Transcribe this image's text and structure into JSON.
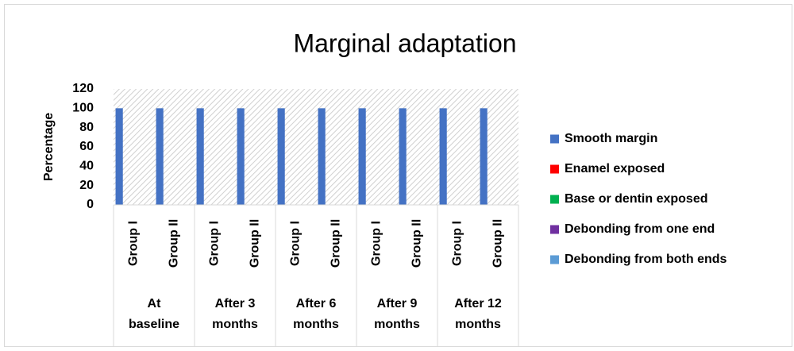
{
  "chart_data": {
    "type": "bar",
    "title": "Marginal adaptation",
    "y_label": "Percentage",
    "categories": [
      "Group I",
      "Group II",
      "Group I",
      "Group II",
      "Group I",
      "Group II",
      "Group I",
      "Group II",
      "Group I",
      "Group II"
    ],
    "group_labels": [
      "At baseline",
      "After 3 months",
      "After 6 months",
      "After 9 months",
      "After 12 months"
    ],
    "series": [
      {
        "name": "Smooth margin",
        "color": "#4472c4",
        "values": [
          100,
          100,
          100,
          100,
          100,
          100,
          100,
          100,
          100,
          100
        ]
      },
      {
        "name": "Enamel exposed",
        "color": "#ff0000",
        "values": [
          0,
          0,
          0,
          0,
          0,
          0,
          0,
          0,
          0,
          0
        ]
      },
      {
        "name": "Base or dentin exposed",
        "color": "#00b050",
        "values": [
          0,
          0,
          0,
          0,
          0,
          0,
          0,
          0,
          0,
          0
        ]
      },
      {
        "name": "Debonding from one end",
        "color": "#7030a0",
        "values": [
          0,
          0,
          0,
          0,
          0,
          0,
          0,
          0,
          0,
          0
        ]
      },
      {
        "name": "Debonding from both ends",
        "color": "#5b9bd5",
        "values": [
          0,
          0,
          0,
          0,
          0,
          0,
          0,
          0,
          0,
          0
        ]
      }
    ],
    "ylim": [
      0,
      120
    ],
    "yticks": [
      0,
      20,
      40,
      60,
      80,
      100,
      120
    ],
    "legend": "right"
  }
}
